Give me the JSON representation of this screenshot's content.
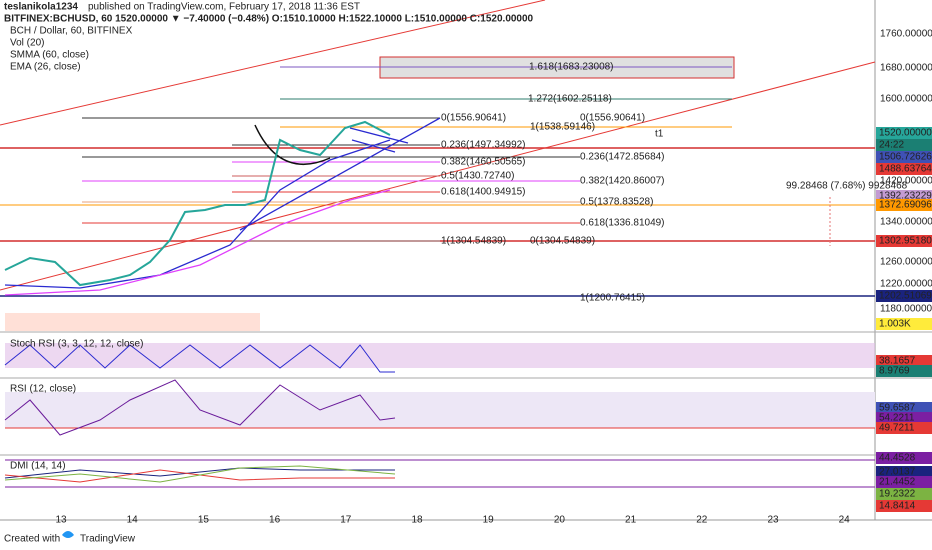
{
  "header": {
    "author": "teslanikola1234",
    "published": "published on TradingView.com, February 17, 2018 11:36 EST",
    "quote": "BITFINEX:BCHUSD, 60  1520.00000 ▼ −7.40000 (−0.48%) O:1510.10000 H:1522.10000 L:1510.00000 C:1520.00000"
  },
  "legend": [
    "BCH / Dollar, 60, BITFINEX",
    "Vol (20)",
    "SMMA (60, close)",
    "EMA (26, close)"
  ],
  "price_axis": [
    "1760.00000",
    "1680.00000",
    "1600.00000",
    "1420.00000",
    "1340.00000",
    "1260.00000",
    "1220.00000",
    "1180.00000"
  ],
  "price_tags": [
    "1520.00000",
    "24:22",
    "1506.72626",
    "1488.63764",
    "1392.23229",
    "1372.69096",
    "1302.95180",
    "1202.51069",
    "1.003K"
  ],
  "fib_labels": [
    "1.618(1683.23008)",
    "1.272(1602.25118)",
    "0(1556.90641)",
    "0(1556.90641)",
    "1(1538.59146)",
    "0.236(1497.34992)",
    "0.236(1472.85684)",
    "0.382(1460.50565)",
    "0.5(1430.72740)",
    "0.382(1420.86007)",
    "0.618(1400.94915)",
    "0.5(1378.83528)",
    "0.618(1336.81049)",
    "1(1304.54839)",
    "0(1304.54839)",
    "1(1200.76415)"
  ],
  "annotations": [
    "t1",
    "99.28468 (7.68%) 9928468"
  ],
  "stoch": {
    "title": "Stoch RSI (3, 3, 12, 12, close)",
    "tags": [
      "38.1657",
      "8.9769"
    ]
  },
  "rsi": {
    "title": "RSI (12, close)",
    "tags": [
      "59.6587",
      "54.2211",
      "49.7211"
    ]
  },
  "dmi": {
    "title": "DMI (14, 14)",
    "tags": [
      "44.4528",
      "27.0137",
      "21.4452",
      "19.2322",
      "14.8414"
    ]
  },
  "time_axis": [
    "13",
    "14",
    "15",
    "16",
    "17",
    "18",
    "19",
    "20",
    "21",
    "22",
    "23",
    "24"
  ],
  "footer": {
    "created": "Created with",
    "brand": "TradingView"
  }
}
